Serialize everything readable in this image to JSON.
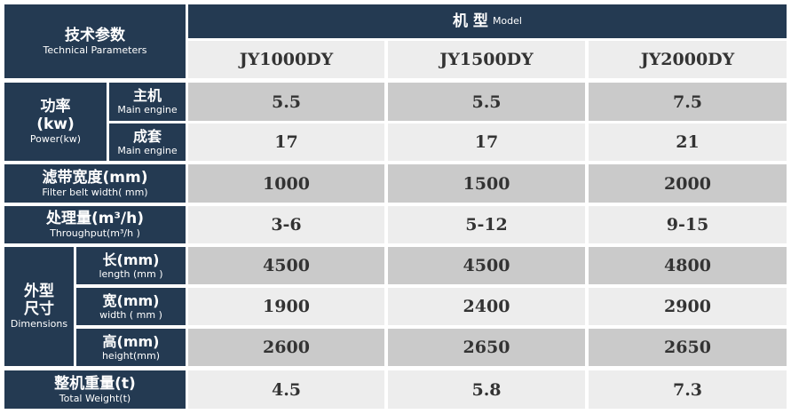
{
  "header": {
    "param_zh": "技术参数",
    "param_en": "Technical Parameters",
    "model_zh": "机 型",
    "model_en": "Model",
    "models": [
      "JY1000DY",
      "JY1500DY",
      "JY2000DY"
    ]
  },
  "groups": {
    "power": {
      "zh": "功率",
      "unit": "(kw)",
      "en": "Power(kw)"
    },
    "dimensions": {
      "zh1": "外型",
      "zh2": "尺寸",
      "en": "Dimensions"
    }
  },
  "rows": [
    {
      "zh": "主机",
      "en": "Main engine",
      "values": [
        "5.5",
        "5.5",
        "7.5"
      ]
    },
    {
      "zh": "成套",
      "en": "Main engine",
      "values": [
        "17",
        "17",
        "21"
      ]
    },
    {
      "zh": "滤带宽度(mm)",
      "en": "Filter belt width( mm)",
      "values": [
        "1000",
        "1500",
        "2000"
      ]
    },
    {
      "zh": "处理量(m³/h)",
      "en": "Throughput(m³/h )",
      "values": [
        "3-6",
        "5-12",
        "9-15"
      ]
    },
    {
      "zh": "长(mm)",
      "en": "length (mm )",
      "values": [
        "4500",
        "4500",
        "4800"
      ]
    },
    {
      "zh": "宽(mm)",
      "en": "width ( mm )",
      "values": [
        "1900",
        "2400",
        "2900"
      ]
    },
    {
      "zh": "高(mm)",
      "en": "height(mm)",
      "values": [
        "2600",
        "2650",
        "2650"
      ]
    },
    {
      "zh": "整机重量(t)",
      "en": "Total Weight(t)",
      "values": [
        "4.5",
        "5.8",
        "7.3"
      ]
    }
  ],
  "colors": {
    "header": "#243a52",
    "row_dark": "#cacaca",
    "row_light": "#ededed"
  }
}
